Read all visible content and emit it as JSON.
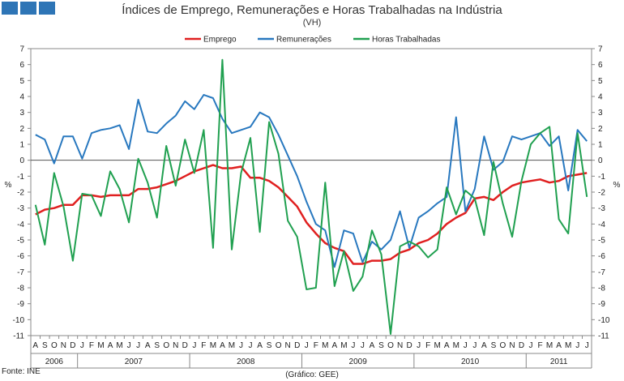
{
  "header": {
    "title": "Índices de Emprego, Remunerações e Horas Trabalhadas na Indústria",
    "subtitle": "(VH)"
  },
  "footer": {
    "source": "Fonte: INE",
    "credit": "(Gráfico: GEE)"
  },
  "chart_data": {
    "type": "line",
    "title": "Índices de Emprego, Remunerações e Horas Trabalhadas na Indústria",
    "subtitle": "(VH)",
    "ylabel": "%",
    "ylabel_right": "%",
    "ylim": [
      -11,
      7
    ],
    "yticks": [
      7,
      6,
      5,
      4,
      3,
      2,
      1,
      0,
      -1,
      -2,
      -3,
      -4,
      -5,
      -6,
      -7,
      -8,
      -9,
      -10,
      -11
    ],
    "grid": false,
    "legend_position": "top-center",
    "x": [
      "A",
      "S",
      "O",
      "N",
      "D",
      "J",
      "F",
      "M",
      "A",
      "M",
      "J",
      "J",
      "A",
      "S",
      "O",
      "N",
      "D",
      "J",
      "F",
      "M",
      "A",
      "M",
      "J",
      "J",
      "A",
      "S",
      "O",
      "N",
      "D",
      "J",
      "F",
      "M",
      "A",
      "M",
      "J",
      "J",
      "A",
      "S",
      "O",
      "N",
      "D",
      "J",
      "F",
      "M",
      "A",
      "M",
      "J",
      "J",
      "A",
      "S",
      "O",
      "N",
      "D",
      "J",
      "F",
      "M",
      "A",
      "M",
      "J",
      "J"
    ],
    "years": [
      {
        "label": "2006",
        "start": 0,
        "end": 4
      },
      {
        "label": "2007",
        "start": 5,
        "end": 16
      },
      {
        "label": "2008",
        "start": 17,
        "end": 28
      },
      {
        "label": "2009",
        "start": 29,
        "end": 40
      },
      {
        "label": "2010",
        "start": 41,
        "end": 52
      },
      {
        "label": "2011",
        "start": 53,
        "end": 59
      }
    ],
    "series": [
      {
        "name": "Emprego",
        "color": "#e02020",
        "values": [
          -3.4,
          -3.1,
          -3.0,
          -2.8,
          -2.8,
          -2.2,
          -2.2,
          -2.3,
          -2.2,
          -2.2,
          -2.2,
          -1.8,
          -1.8,
          -1.7,
          -1.5,
          -1.3,
          -1.0,
          -0.7,
          -0.5,
          -0.3,
          -0.5,
          -0.5,
          -0.4,
          -1.1,
          -1.1,
          -1.3,
          -1.7,
          -2.3,
          -2.9,
          -3.9,
          -4.6,
          -5.2,
          -5.5,
          -5.7,
          -6.5,
          -6.5,
          -6.3,
          -6.3,
          -6.2,
          -5.8,
          -5.6,
          -5.2,
          -5.0,
          -4.6,
          -4.0,
          -3.6,
          -3.3,
          -2.4,
          -2.3,
          -2.5,
          -2.0,
          -1.6,
          -1.4,
          -1.3,
          -1.2,
          -1.4,
          -1.3,
          -1.0,
          -0.9,
          -0.8
        ]
      },
      {
        "name": "Remunerações",
        "color": "#2878bf",
        "values": [
          1.6,
          1.3,
          -0.2,
          1.5,
          1.5,
          0.1,
          1.7,
          1.9,
          2.0,
          2.2,
          0.7,
          3.8,
          1.8,
          1.7,
          2.3,
          2.8,
          3.7,
          3.2,
          4.1,
          3.9,
          2.6,
          1.7,
          1.9,
          2.1,
          3.0,
          2.7,
          1.6,
          0.3,
          -1.0,
          -2.6,
          -4.0,
          -4.4,
          -6.7,
          -4.4,
          -4.6,
          -6.4,
          -5.1,
          -5.6,
          -5.0,
          -3.2,
          -5.5,
          -3.6,
          -3.2,
          -2.7,
          -2.3,
          2.7,
          -3.2,
          -1.8,
          1.5,
          -0.6,
          -0.1,
          1.5,
          1.3,
          1.5,
          1.7,
          0.9,
          1.5,
          -1.9,
          1.9,
          1.2
        ]
      },
      {
        "name": "Horas Trabalhadas",
        "color": "#20a050",
        "values": [
          -2.8,
          -5.3,
          -0.8,
          -2.9,
          -6.3,
          -2.1,
          -2.2,
          -3.5,
          -0.7,
          -1.8,
          -3.9,
          0.1,
          -1.4,
          -3.6,
          0.9,
          -1.6,
          1.3,
          -0.8,
          1.9,
          -5.5,
          6.3,
          -5.6,
          -0.8,
          1.4,
          -4.5,
          2.4,
          0.4,
          -3.8,
          -4.8,
          -8.1,
          -8.0,
          -1.4,
          -7.9,
          -5.7,
          -8.2,
          -7.3,
          -4.4,
          -5.9,
          -10.9,
          -5.4,
          -5.1,
          -5.4,
          -6.1,
          -5.6,
          -1.7,
          -3.4,
          -1.9,
          -2.4,
          -4.7,
          -0.1,
          -2.7,
          -4.8,
          -1.3,
          1.0,
          1.7,
          2.1,
          -3.7,
          -4.6,
          1.7,
          -2.3
        ]
      }
    ]
  }
}
